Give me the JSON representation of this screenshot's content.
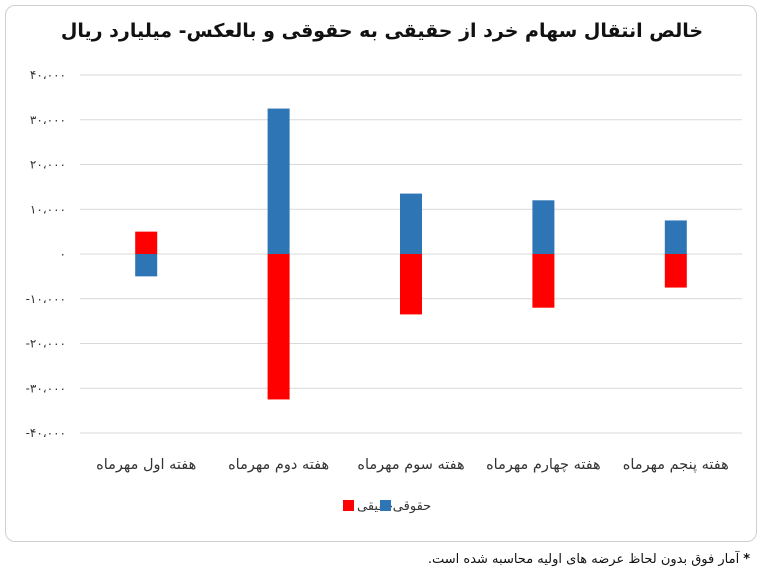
{
  "footnote": {
    "star": "*",
    "text": "آمار فوق بدون لحاظ عرضه های اولیه محاسبه شده است."
  },
  "chart_data": {
    "type": "bar",
    "title": "خالص انتقال سهام خرد از حقیقی به حقوقی و بالعکس- میلیارد ریال",
    "xlabel": "",
    "ylabel": "",
    "ylim": [
      -40000,
      40000
    ],
    "yticks": [
      40000,
      30000,
      20000,
      10000,
      0,
      -10000,
      -20000,
      -30000,
      -40000
    ],
    "ytick_labels": [
      "۴۰،۰۰۰",
      "۳۰،۰۰۰",
      "۲۰،۰۰۰",
      "۱۰،۰۰۰",
      "۰",
      "-۱۰،۰۰۰",
      "-۲۰،۰۰۰",
      "-۳۰،۰۰۰",
      "-۴۰،۰۰۰"
    ],
    "grid": true,
    "legend_position": "bottom-center",
    "categories": [
      "هفته اول مهرماه",
      "هفته دوم مهرماه",
      "هفته سوم مهرماه",
      "هفته چهارم مهرماه",
      "هفته پنجم مهرماه"
    ],
    "series": [
      {
        "name": "حقیقی",
        "color": "#ff0000",
        "values": [
          5000,
          -32500,
          -13500,
          -12000,
          -7500
        ]
      },
      {
        "name": "حقوقی",
        "color": "#2e75b6",
        "values": [
          -5000,
          32500,
          13500,
          12000,
          7500
        ]
      }
    ]
  }
}
